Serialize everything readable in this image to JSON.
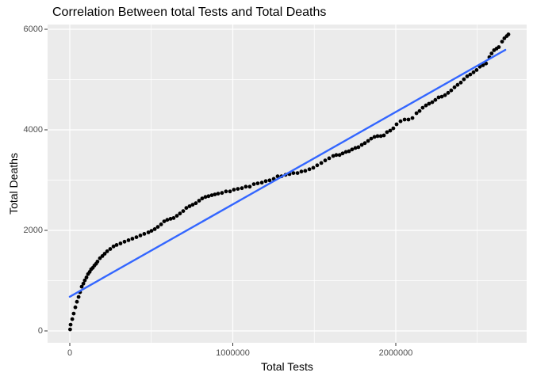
{
  "chart_data": {
    "type": "scatter",
    "title": "Correlation Between total Tests and Total Deaths",
    "xlabel": "Total Tests",
    "ylabel": "Total Deaths",
    "x_ticks": [
      0,
      1000000,
      2000000
    ],
    "x_tick_labels": [
      "0",
      "1000000",
      "2000000"
    ],
    "x_minor_ticks": [
      500000,
      1500000,
      2500000
    ],
    "y_ticks": [
      0,
      2000,
      4000,
      6000
    ],
    "y_tick_labels": [
      "0",
      "2000",
      "4000",
      "6000"
    ],
    "y_minor_ticks": [
      1000,
      3000,
      5000
    ],
    "xlim": [
      -136000,
      2803000
    ],
    "ylim": [
      -240,
      6330
    ],
    "grid": true,
    "legend_position": "none",
    "panel_bg": "#EBEBEB",
    "grid_color": "#FFFFFF",
    "tick_color": "#333333",
    "tick_label_color": "#4D4D4D",
    "point_color": "#000000",
    "regression_line": {
      "color": "#3366FF",
      "x": [
        0,
        2672000
      ],
      "y": [
        680,
        5590
      ]
    },
    "points": [
      [
        2000,
        30
      ],
      [
        5000,
        125
      ],
      [
        15000,
        235
      ],
      [
        24000,
        345
      ],
      [
        34000,
        470
      ],
      [
        44000,
        580
      ],
      [
        54000,
        675
      ],
      [
        63000,
        770
      ],
      [
        73000,
        880
      ],
      [
        83000,
        940
      ],
      [
        92000,
        1005
      ],
      [
        102000,
        1065
      ],
      [
        112000,
        1130
      ],
      [
        122000,
        1175
      ],
      [
        131000,
        1225
      ],
      [
        141000,
        1255
      ],
      [
        151000,
        1300
      ],
      [
        161000,
        1335
      ],
      [
        170000,
        1380
      ],
      [
        185000,
        1445
      ],
      [
        200000,
        1490
      ],
      [
        214000,
        1535
      ],
      [
        229000,
        1585
      ],
      [
        248000,
        1630
      ],
      [
        268000,
        1680
      ],
      [
        287000,
        1710
      ],
      [
        311000,
        1740
      ],
      [
        336000,
        1775
      ],
      [
        360000,
        1805
      ],
      [
        384000,
        1835
      ],
      [
        409000,
        1865
      ],
      [
        433000,
        1900
      ],
      [
        457000,
        1930
      ],
      [
        482000,
        1960
      ],
      [
        501000,
        1990
      ],
      [
        521000,
        2025
      ],
      [
        540000,
        2070
      ],
      [
        560000,
        2120
      ],
      [
        579000,
        2180
      ],
      [
        598000,
        2210
      ],
      [
        618000,
        2230
      ],
      [
        637000,
        2245
      ],
      [
        657000,
        2290
      ],
      [
        676000,
        2335
      ],
      [
        696000,
        2385
      ],
      [
        715000,
        2445
      ],
      [
        735000,
        2480
      ],
      [
        754000,
        2510
      ],
      [
        773000,
        2540
      ],
      [
        793000,
        2590
      ],
      [
        812000,
        2635
      ],
      [
        832000,
        2665
      ],
      [
        851000,
        2680
      ],
      [
        871000,
        2700
      ],
      [
        890000,
        2715
      ],
      [
        910000,
        2730
      ],
      [
        934000,
        2745
      ],
      [
        958000,
        2775
      ],
      [
        983000,
        2775
      ],
      [
        1007000,
        2810
      ],
      [
        1031000,
        2825
      ],
      [
        1056000,
        2840
      ],
      [
        1080000,
        2870
      ],
      [
        1104000,
        2870
      ],
      [
        1129000,
        2920
      ],
      [
        1153000,
        2935
      ],
      [
        1178000,
        2950
      ],
      [
        1202000,
        2980
      ],
      [
        1226000,
        2995
      ],
      [
        1251000,
        3025
      ],
      [
        1275000,
        3075
      ],
      [
        1299000,
        3075
      ],
      [
        1324000,
        3105
      ],
      [
        1348000,
        3120
      ],
      [
        1372000,
        3140
      ],
      [
        1397000,
        3140
      ],
      [
        1421000,
        3170
      ],
      [
        1445000,
        3185
      ],
      [
        1470000,
        3215
      ],
      [
        1494000,
        3245
      ],
      [
        1518000,
        3295
      ],
      [
        1543000,
        3340
      ],
      [
        1567000,
        3390
      ],
      [
        1591000,
        3435
      ],
      [
        1616000,
        3480
      ],
      [
        1635000,
        3500
      ],
      [
        1655000,
        3500
      ],
      [
        1674000,
        3530
      ],
      [
        1694000,
        3560
      ],
      [
        1713000,
        3575
      ],
      [
        1732000,
        3610
      ],
      [
        1752000,
        3640
      ],
      [
        1771000,
        3655
      ],
      [
        1791000,
        3700
      ],
      [
        1810000,
        3735
      ],
      [
        1830000,
        3780
      ],
      [
        1849000,
        3825
      ],
      [
        1869000,
        3860
      ],
      [
        1888000,
        3875
      ],
      [
        1908000,
        3875
      ],
      [
        1927000,
        3890
      ],
      [
        1946000,
        3955
      ],
      [
        1966000,
        3985
      ],
      [
        1985000,
        4030
      ],
      [
        2005000,
        4110
      ],
      [
        2029000,
        4170
      ],
      [
        2054000,
        4205
      ],
      [
        2078000,
        4205
      ],
      [
        2102000,
        4235
      ],
      [
        2127000,
        4330
      ],
      [
        2146000,
        4375
      ],
      [
        2165000,
        4440
      ],
      [
        2185000,
        4485
      ],
      [
        2204000,
        4520
      ],
      [
        2224000,
        4550
      ],
      [
        2243000,
        4595
      ],
      [
        2263000,
        4645
      ],
      [
        2282000,
        4660
      ],
      [
        2302000,
        4690
      ],
      [
        2321000,
        4735
      ],
      [
        2340000,
        4785
      ],
      [
        2360000,
        4845
      ],
      [
        2379000,
        4895
      ],
      [
        2399000,
        4940
      ],
      [
        2418000,
        5005
      ],
      [
        2438000,
        5065
      ],
      [
        2457000,
        5100
      ],
      [
        2477000,
        5145
      ],
      [
        2496000,
        5190
      ],
      [
        2516000,
        5255
      ],
      [
        2535000,
        5285
      ],
      [
        2554000,
        5320
      ],
      [
        2574000,
        5445
      ],
      [
        2588000,
        5520
      ],
      [
        2603000,
        5585
      ],
      [
        2618000,
        5615
      ],
      [
        2632000,
        5645
      ],
      [
        2652000,
        5755
      ],
      [
        2666000,
        5820
      ],
      [
        2681000,
        5865
      ],
      [
        2691000,
        5900
      ]
    ]
  }
}
